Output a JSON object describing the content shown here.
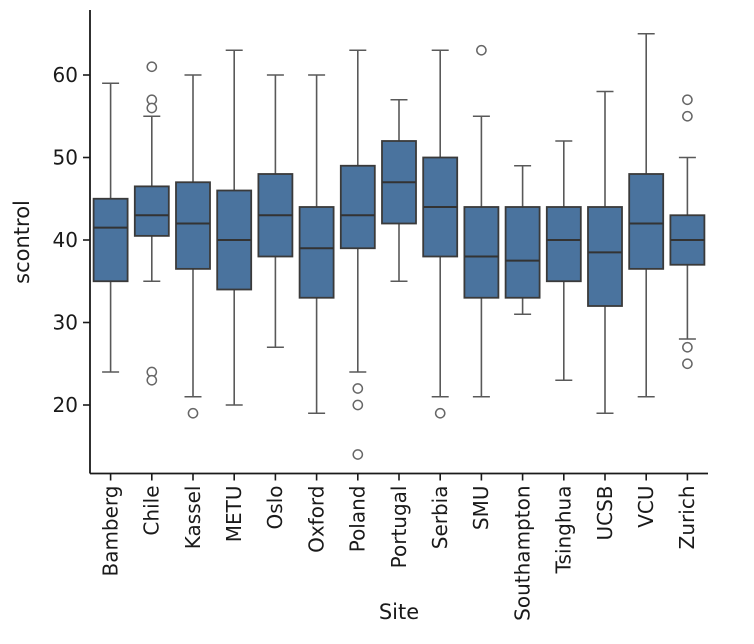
{
  "figure": {
    "background": "#ffffff",
    "colors": {
      "box_fill": "#4a739e",
      "box_edge": "#3a3a3a",
      "median": "#333333",
      "whisker": "#595959",
      "outlier_stroke": "#666666",
      "spine": "#1a1a1a",
      "text": "#1a1a1a"
    }
  },
  "chart_data": {
    "type": "box",
    "title": "",
    "xlabel": "Site",
    "ylabel": "scontrol",
    "ylim": [
      11.7,
      67.8
    ],
    "y_ticks": [
      20,
      30,
      40,
      50,
      60
    ],
    "grid": false,
    "legend": "none",
    "categories": [
      "Bamberg",
      "Chile",
      "Kassel",
      "METU",
      "Oslo",
      "Oxford",
      "Poland",
      "Portugal",
      "Serbia",
      "SMU",
      "Southampton",
      "Tsinghua",
      "UCSB",
      "VCU",
      "Zurich"
    ],
    "boxes": [
      {
        "site": "Bamberg",
        "whisker_low": 24,
        "q1": 35,
        "median": 41.5,
        "q3": 45,
        "whisker_high": 59,
        "outliers": []
      },
      {
        "site": "Chile",
        "whisker_low": 35,
        "q1": 40.5,
        "median": 43,
        "q3": 46.5,
        "whisker_high": 55,
        "outliers": [
          61,
          57,
          56,
          24,
          23
        ]
      },
      {
        "site": "Kassel",
        "whisker_low": 21,
        "q1": 36.5,
        "median": 42,
        "q3": 47,
        "whisker_high": 60,
        "outliers": [
          19
        ]
      },
      {
        "site": "METU",
        "whisker_low": 20,
        "q1": 34,
        "median": 40,
        "q3": 46,
        "whisker_high": 63,
        "outliers": []
      },
      {
        "site": "Oslo",
        "whisker_low": 27,
        "q1": 38,
        "median": 43,
        "q3": 48,
        "whisker_high": 60,
        "outliers": []
      },
      {
        "site": "Oxford",
        "whisker_low": 19,
        "q1": 33,
        "median": 39,
        "q3": 44,
        "whisker_high": 60,
        "outliers": []
      },
      {
        "site": "Poland",
        "whisker_low": 24,
        "q1": 39,
        "median": 43,
        "q3": 49,
        "whisker_high": 63,
        "outliers": [
          22,
          20,
          14
        ]
      },
      {
        "site": "Portugal",
        "whisker_low": 35,
        "q1": 42,
        "median": 47,
        "q3": 52,
        "whisker_high": 57,
        "outliers": []
      },
      {
        "site": "Serbia",
        "whisker_low": 21,
        "q1": 38,
        "median": 44,
        "q3": 50,
        "whisker_high": 63,
        "outliers": [
          19
        ]
      },
      {
        "site": "SMU",
        "whisker_low": 21,
        "q1": 33,
        "median": 38,
        "q3": 44,
        "whisker_high": 55,
        "outliers": [
          63
        ]
      },
      {
        "site": "Southampton",
        "whisker_low": 31,
        "q1": 33,
        "median": 37.5,
        "q3": 44,
        "whisker_high": 49,
        "outliers": []
      },
      {
        "site": "Tsinghua",
        "whisker_low": 23,
        "q1": 35,
        "median": 40,
        "q3": 44,
        "whisker_high": 52,
        "outliers": []
      },
      {
        "site": "UCSB",
        "whisker_low": 19,
        "q1": 32,
        "median": 38.5,
        "q3": 44,
        "whisker_high": 58,
        "outliers": []
      },
      {
        "site": "VCU",
        "whisker_low": 21,
        "q1": 36.5,
        "median": 42,
        "q3": 48,
        "whisker_high": 65,
        "outliers": []
      },
      {
        "site": "Zurich",
        "whisker_low": 28,
        "q1": 37,
        "median": 40,
        "q3": 43,
        "whisker_high": 50,
        "outliers": [
          57,
          55,
          27,
          25
        ]
      }
    ]
  }
}
